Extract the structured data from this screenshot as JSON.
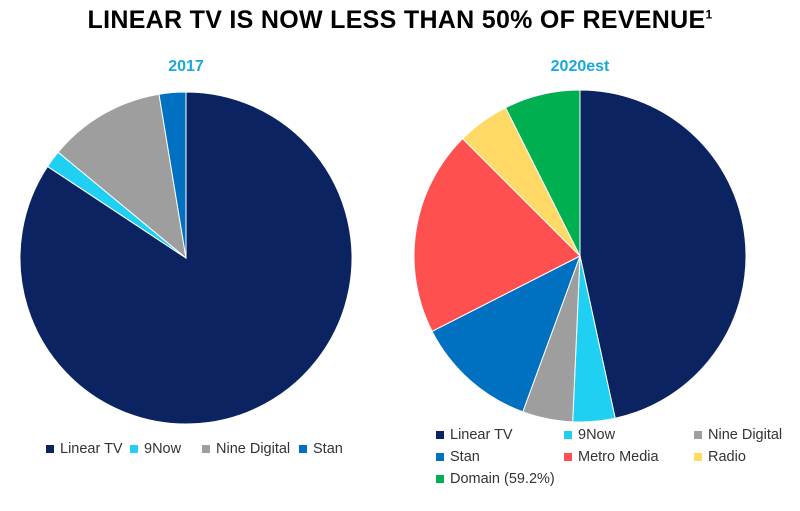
{
  "page_title": "LINEAR TV IS NOW LESS THAN 50% OF REVENUE",
  "page_title_footnote": "1",
  "chart_data": [
    {
      "type": "pie",
      "title": "2017",
      "start_angle_deg": 0,
      "direction": "clockwise",
      "categories": [
        "Linear TV",
        "9Now",
        "Nine Digital",
        "Stan"
      ],
      "values": [
        84.3,
        1.7,
        11.4,
        2.6
      ],
      "colors": [
        "#0b2461",
        "#1fd0f3",
        "#9e9e9e",
        "#0070c0"
      ],
      "legend": [
        "Linear TV",
        "9Now",
        "Nine Digital",
        "Stan"
      ]
    },
    {
      "type": "pie",
      "title": "2020est",
      "start_angle_deg": 0,
      "direction": "clockwise",
      "categories": [
        "Linear TV",
        "9Now",
        "Nine Digital",
        "Stan",
        "Metro Media",
        "Radio",
        "Domain"
      ],
      "values": [
        46.6,
        4.1,
        4.9,
        11.9,
        20.0,
        5.1,
        7.4
      ],
      "colors": [
        "#0b2461",
        "#1fd0f3",
        "#9e9e9e",
        "#0070c0",
        "#ff5050",
        "#ffd966",
        "#00b050"
      ],
      "legend": [
        "Linear TV",
        "9Now",
        "Nine Digital",
        "Stan",
        "Metro Media",
        "Radio",
        "Domain (59.2%)"
      ]
    }
  ]
}
